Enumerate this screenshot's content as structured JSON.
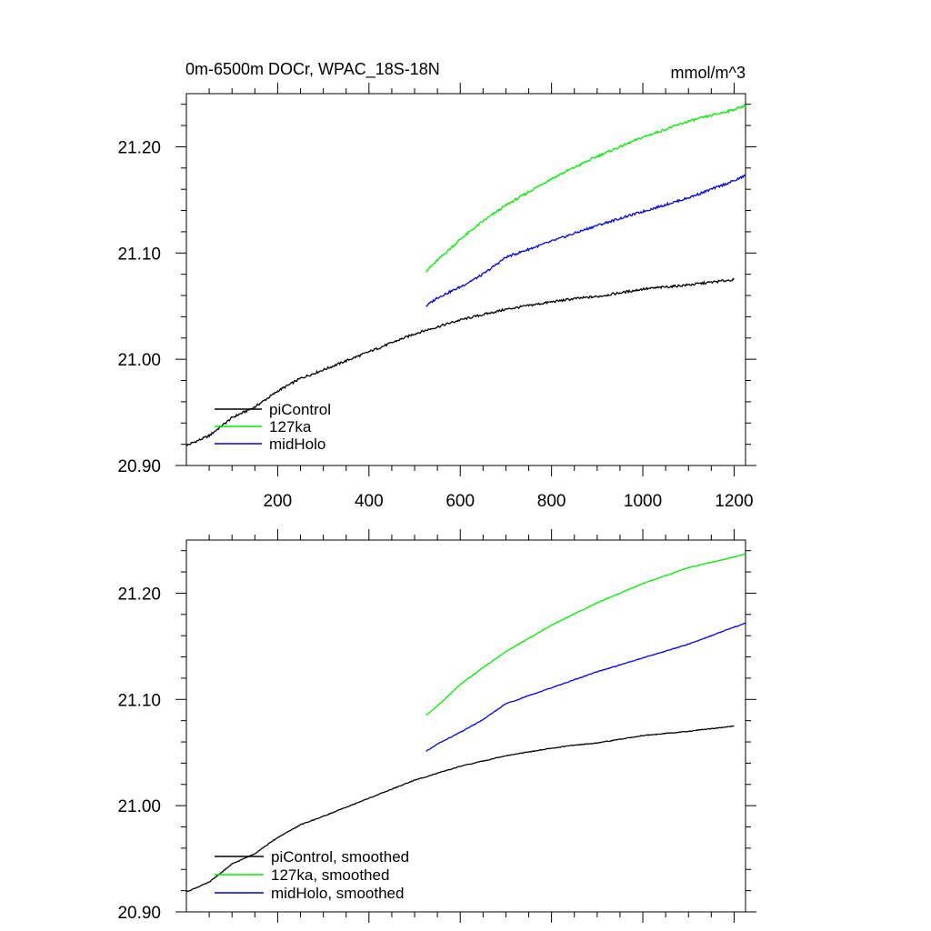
{
  "chart_data": [
    {
      "type": "line",
      "title": "0m-6500m DOCr, WPAC_18S-18N",
      "units": "mmol/m^3",
      "xlim": [
        0,
        1225
      ],
      "ylim": [
        20.9,
        21.25
      ],
      "xticks": [
        200,
        400,
        600,
        800,
        1000,
        1200
      ],
      "xtick_labels": [
        "200",
        "400",
        "600",
        "800",
        "1000",
        "1200"
      ],
      "yticks": [
        20.9,
        21.0,
        21.1,
        21.2
      ],
      "ytick_labels": [
        "20.90",
        "21.00",
        "21.10",
        "21.20"
      ],
      "grid": false,
      "legend": "bottom-left",
      "series": [
        {
          "name": "piControl",
          "color": "#000000",
          "x": [
            1,
            50,
            100,
            150,
            200,
            250,
            300,
            400,
            500,
            600,
            700,
            800,
            850,
            900,
            1000,
            1100,
            1200
          ],
          "y": [
            20.919,
            20.928,
            20.945,
            20.955,
            20.97,
            20.982,
            20.99,
            21.007,
            21.024,
            21.037,
            21.047,
            21.054,
            21.057,
            21.059,
            21.066,
            21.07,
            21.075
          ]
        },
        {
          "name": "127ka",
          "color": "#00ee00",
          "x": [
            525,
            550,
            600,
            650,
            700,
            800,
            900,
            1000,
            1100,
            1200,
            1225
          ],
          "y": [
            21.083,
            21.093,
            21.113,
            21.13,
            21.145,
            21.17,
            21.191,
            21.209,
            21.224,
            21.235,
            21.239
          ]
        },
        {
          "name": "midHolo",
          "color": "#0000ee",
          "x": [
            525,
            550,
            600,
            650,
            700,
            800,
            900,
            1000,
            1100,
            1200,
            1225
          ],
          "y": [
            21.05,
            21.058,
            21.068,
            21.08,
            21.096,
            21.111,
            21.126,
            21.139,
            21.152,
            21.168,
            21.173
          ]
        }
      ]
    },
    {
      "type": "line",
      "title": "",
      "xlim": [
        0,
        1225
      ],
      "ylim": [
        20.9,
        21.25
      ],
      "yticks": [
        20.9,
        21.0,
        21.1,
        21.2
      ],
      "ytick_labels": [
        "20.90",
        "21.00",
        "21.10",
        "21.20"
      ],
      "grid": false,
      "legend": "bottom-left",
      "series": [
        {
          "name": "piControl, smoothed",
          "color": "#000000",
          "x": [
            1,
            50,
            100,
            150,
            200,
            250,
            300,
            400,
            500,
            600,
            700,
            800,
            850,
            900,
            1000,
            1100,
            1200
          ],
          "y": [
            20.919,
            20.928,
            20.945,
            20.955,
            20.97,
            20.982,
            20.99,
            21.007,
            21.024,
            21.037,
            21.047,
            21.054,
            21.057,
            21.059,
            21.066,
            21.07,
            21.075
          ]
        },
        {
          "name": "127ka, smoothed",
          "color": "#00ee00",
          "x": [
            525,
            550,
            600,
            650,
            700,
            800,
            900,
            1000,
            1100,
            1200,
            1225
          ],
          "y": [
            21.085,
            21.094,
            21.114,
            21.13,
            21.145,
            21.17,
            21.191,
            21.209,
            21.224,
            21.234,
            21.237
          ]
        },
        {
          "name": "midHolo, smoothed",
          "color": "#0000ee",
          "x": [
            525,
            550,
            600,
            650,
            700,
            800,
            900,
            1000,
            1100,
            1200,
            1225
          ],
          "y": [
            21.051,
            21.058,
            21.069,
            21.081,
            21.096,
            21.111,
            21.126,
            21.139,
            21.152,
            21.168,
            21.172
          ]
        }
      ]
    }
  ]
}
